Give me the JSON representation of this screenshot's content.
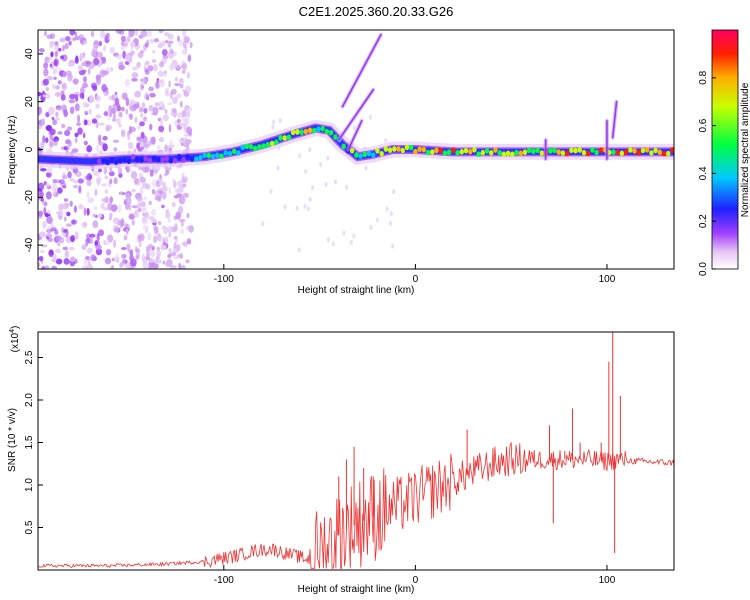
{
  "figure": {
    "title": "C2E1.2025.360.20.33.G26"
  },
  "chart_data": [
    {
      "type": "heatmap",
      "title": "C2E1.2025.360.20.33.G26",
      "xlabel": "Height of straight line (km)",
      "ylabel": "Frequency (Hz)",
      "xlim": [
        -197,
        135
      ],
      "ylim": [
        -50,
        50
      ],
      "x_ticks": [
        -100,
        0,
        100
      ],
      "y_ticks": [
        -40,
        -20,
        0,
        20,
        40
      ],
      "colorbar": {
        "label": "Normalized spectral amplitude",
        "range": [
          0,
          1
        ],
        "ticks": [
          0.0,
          0.2,
          0.4,
          0.6,
          0.8
        ]
      },
      "ridge": [
        {
          "x": -197,
          "y": -4
        },
        {
          "x": -170,
          "y": -5
        },
        {
          "x": -150,
          "y": -4
        },
        {
          "x": -130,
          "y": -4
        },
        {
          "x": -110,
          "y": -3
        },
        {
          "x": -95,
          "y": -1
        },
        {
          "x": -80,
          "y": 2
        },
        {
          "x": -65,
          "y": 6
        },
        {
          "x": -52,
          "y": 9
        },
        {
          "x": -45,
          "y": 8
        },
        {
          "x": -38,
          "y": 2
        },
        {
          "x": -30,
          "y": -3
        },
        {
          "x": -22,
          "y": -2
        },
        {
          "x": -12,
          "y": 0
        },
        {
          "x": 0,
          "y": 0
        },
        {
          "x": 20,
          "y": -1
        },
        {
          "x": 40,
          "y": -1
        },
        {
          "x": 60,
          "y": -1
        },
        {
          "x": 80,
          "y": -1
        },
        {
          "x": 100,
          "y": -1
        },
        {
          "x": 120,
          "y": -1
        },
        {
          "x": 135,
          "y": -1
        }
      ]
    },
    {
      "type": "line",
      "xlabel": "Height of straight line (km)",
      "ylabel": "SNR (10 * v/v)",
      "y_multiplier": "(x10⁴)",
      "y_multiplier_base": "(x10",
      "y_multiplier_exp": "4",
      "y_multiplier_close": ")",
      "xlim": [
        -197,
        135
      ],
      "ylim": [
        0,
        2.8
      ],
      "x_ticks": [
        -100,
        0,
        100
      ],
      "y_ticks": [
        0.5,
        1.0,
        1.5,
        2.0,
        2.5
      ],
      "series": [
        {
          "name": "SNR",
          "color": "#ee3333",
          "points": [
            {
              "x": -197,
              "y": 0.05
            },
            {
              "x": -160,
              "y": 0.05
            },
            {
              "x": -130,
              "y": 0.07
            },
            {
              "x": -110,
              "y": 0.1
            },
            {
              "x": -95,
              "y": 0.16
            },
            {
              "x": -85,
              "y": 0.22
            },
            {
              "x": -75,
              "y": 0.25
            },
            {
              "x": -65,
              "y": 0.18
            },
            {
              "x": -55,
              "y": 0.12
            },
            {
              "x": -45,
              "y": 0.3
            },
            {
              "x": -38,
              "y": 0.45
            },
            {
              "x": -30,
              "y": 0.55
            },
            {
              "x": -20,
              "y": 0.65
            },
            {
              "x": -10,
              "y": 0.75
            },
            {
              "x": 0,
              "y": 0.85
            },
            {
              "x": 10,
              "y": 0.95
            },
            {
              "x": 20,
              "y": 1.05
            },
            {
              "x": 30,
              "y": 1.15
            },
            {
              "x": 40,
              "y": 1.25
            },
            {
              "x": 50,
              "y": 1.3
            },
            {
              "x": 60,
              "y": 1.3
            },
            {
              "x": 70,
              "y": 1.3
            },
            {
              "x": 80,
              "y": 1.3
            },
            {
              "x": 90,
              "y": 1.3
            },
            {
              "x": 100,
              "y": 1.28
            },
            {
              "x": 106,
              "y": 1.3
            },
            {
              "x": 115,
              "y": 1.28
            },
            {
              "x": 125,
              "y": 1.27
            },
            {
              "x": 135,
              "y": 1.26
            }
          ],
          "spikes": [
            {
              "x": -40,
              "y": 1.1
            },
            {
              "x": -36,
              "y": 1.3
            },
            {
              "x": -32,
              "y": 1.45
            },
            {
              "x": -27,
              "y": 1.2
            },
            {
              "x": -22,
              "y": 1.1
            },
            {
              "x": 27,
              "y": 1.65
            },
            {
              "x": 70,
              "y": 1.7
            },
            {
              "x": 72,
              "y": 0.55
            },
            {
              "x": 78,
              "y": 1.4
            },
            {
              "x": 82,
              "y": 1.9
            },
            {
              "x": 86,
              "y": 1.5
            },
            {
              "x": 97,
              "y": 1.5
            },
            {
              "x": 101,
              "y": 2.45
            },
            {
              "x": 103,
              "y": 2.8
            },
            {
              "x": 104,
              "y": 0.2
            },
            {
              "x": 107,
              "y": 2.05
            }
          ]
        }
      ]
    }
  ]
}
